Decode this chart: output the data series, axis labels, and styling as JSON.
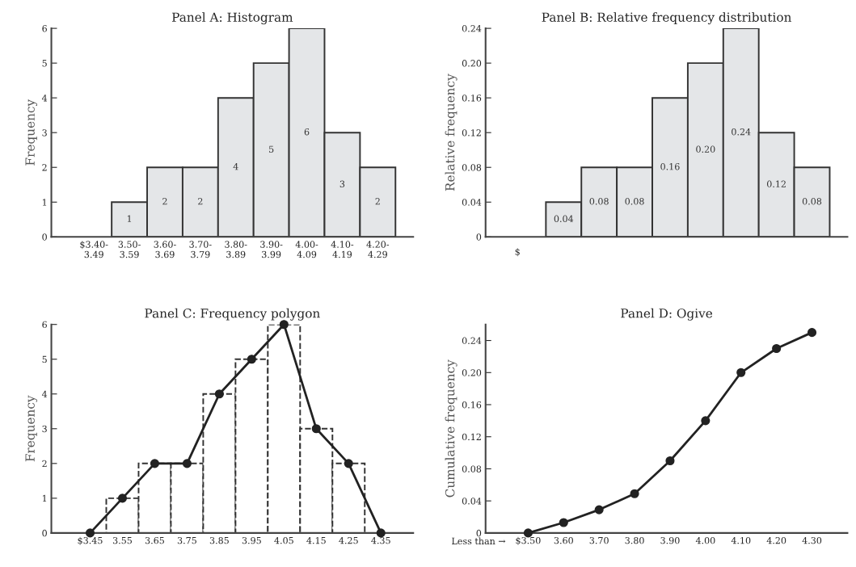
{
  "chart_data": [
    {
      "type": "bar",
      "title": "Panel A: Histogram",
      "ylabel": "Frequency",
      "categories": [
        "$3.40-\n3.49",
        "3.50-\n3.59",
        "3.60-\n3.69",
        "3.70-\n3.79",
        "3.80-\n3.89",
        "3.90-\n3.99",
        "4.00-\n4.09",
        "4.10-\n4.19",
        "4.20-\n4.29"
      ],
      "values": [
        0,
        1,
        2,
        2,
        4,
        5,
        6,
        3,
        2
      ],
      "color": "#e4e6e8",
      "value_labels": [
        null,
        "1",
        "2",
        "2",
        "4",
        "5",
        "6",
        "3",
        "2"
      ],
      "ylim": [
        0,
        6
      ],
      "yticks": [
        0,
        1,
        2,
        3,
        4,
        5,
        6
      ]
    },
    {
      "type": "bar",
      "title": "Panel B: Relative frequency distribution",
      "ylabel": "Relative frequency",
      "categories": [
        null,
        null,
        null,
        null,
        null,
        null,
        null,
        null,
        null
      ],
      "annotations": [
        "$"
      ],
      "values": [
        0,
        0.04,
        0.08,
        0.08,
        0.16,
        0.2,
        0.24,
        0.12,
        0.08
      ],
      "color": "#e4e6e8",
      "value_labels": [
        null,
        "0.04",
        "0.08",
        "0.08",
        "0.16",
        "0.20",
        "0.24",
        "0.12",
        "0.08"
      ],
      "ylim": [
        0,
        0.24
      ],
      "yticks": [
        0,
        0.04,
        0.08,
        0.12,
        0.16,
        {
          "value": 0.2,
          "label": "0.20"
        },
        0.24
      ]
    },
    {
      "type": "line",
      "title": "Panel C: Frequency polygon",
      "ylabel": "Frequency",
      "categories": [
        "$3.45",
        "3.55",
        "3.65",
        "3.75",
        "3.85",
        "3.95",
        "4.05",
        "4.15",
        "4.25",
        "4.35"
      ],
      "series": [
        {
          "type": "bar",
          "values": [
            null,
            1,
            2,
            2,
            4,
            5,
            6,
            3,
            2,
            null
          ],
          "color": "#ffffff",
          "line_style": "dashed"
        },
        {
          "type": "line",
          "values": [
            0,
            1,
            2,
            2,
            4,
            5,
            6,
            3,
            2,
            0
          ],
          "color": "#222222",
          "marker": "circle",
          "line_style": "solid"
        }
      ],
      "ylim": [
        0,
        6
      ],
      "yticks": [
        0,
        1,
        2,
        3,
        4,
        5,
        6
      ]
    },
    {
      "type": "line",
      "title": "Panel D: Ogive",
      "ylabel": "Cumulative frequency",
      "categories": [
        "$3.50",
        "3.60",
        "3.70",
        "3.80",
        "3.90",
        "4.00",
        "4.10",
        "4.20",
        "4.30"
      ],
      "values": [
        0,
        0.013,
        0.029,
        0.049,
        0.09,
        0.14,
        0.2,
        0.23,
        0.25
      ],
      "color": "#222222",
      "marker": "circle",
      "annotations": [
        "Less than →"
      ],
      "ylim": [
        0,
        0.26
      ],
      "yticks": [
        0,
        0.04,
        0.08,
        0.12,
        0.16,
        {
          "value": 0.2,
          "label": "0.20"
        },
        0.24
      ]
    }
  ]
}
